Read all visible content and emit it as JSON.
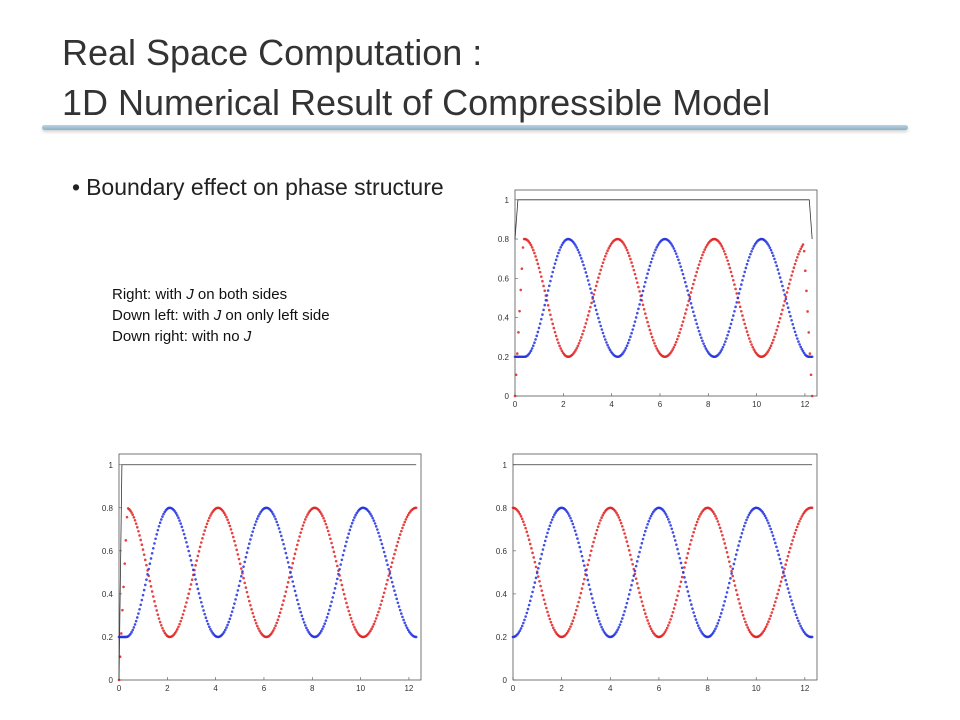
{
  "slide": {
    "title_line1": "Real Space Computation :",
    "title_line2": "1D Numerical Result of Compressible Model",
    "bullet_marker": "•",
    "bullet_text": "Boundary effect on phase structure",
    "caption_lines": [
      {
        "prefix": "Right: with ",
        "symbol": "J",
        "suffix": " on both sides"
      },
      {
        "prefix": "Down left: with ",
        "symbol": "J",
        "suffix": " on only left side"
      },
      {
        "prefix": "Down right: with no ",
        "symbol": "J",
        "suffix": ""
      }
    ]
  },
  "colors": {
    "red_series": "#e02020",
    "blue_series": "#2030e0",
    "black_series": "#333333"
  },
  "chart_data": [
    {
      "type": "scatter",
      "caption": "Right: with J on both sides",
      "xlim": [
        0,
        12.5
      ],
      "ylim": [
        0,
        1.05
      ],
      "x_ticks": [
        0,
        2,
        4,
        6,
        8,
        10,
        12
      ],
      "y_ticks": [
        0,
        0.2,
        0.4,
        0.6,
        0.8,
        1
      ],
      "period": 4.0,
      "amplitude": {
        "high": 0.8,
        "low": 0.2
      },
      "boundary": {
        "left": "J",
        "right": "J",
        "edge_values": {
          "red": 0.0,
          "blue": 0.2,
          "black_series_drop_to": 0.8
        }
      },
      "series": [
        {
          "color": "red",
          "start": 0.8,
          "peaks_x": [
            0.4,
            4.25,
            8.25,
            12.2
          ],
          "troughs_x": [
            2.2,
            6.2,
            10.2
          ]
        },
        {
          "color": "blue",
          "start": 0.2,
          "peaks_x": [
            2.2,
            6.2,
            10.2
          ],
          "troughs_x": [
            0.4,
            4.25,
            8.25,
            12.2
          ]
        },
        {
          "color": "black",
          "value": 1.0
        }
      ]
    },
    {
      "type": "scatter",
      "caption": "Down left: with J on only left side",
      "xlim": [
        0,
        12.5
      ],
      "ylim": [
        0,
        1.05
      ],
      "x_ticks": [
        0,
        2,
        4,
        6,
        8,
        10,
        12
      ],
      "y_ticks": [
        0,
        0.2,
        0.4,
        0.6,
        0.8,
        1
      ],
      "period": 4.0,
      "amplitude": {
        "high": 0.8,
        "low": 0.2
      },
      "boundary": {
        "left": "J",
        "right": "none",
        "edge_values": {
          "red": 0.0,
          "blue": 0.2
        }
      },
      "series": [
        {
          "color": "red",
          "start": 0.8,
          "peaks_x": [
            0.3,
            4.1,
            8.1,
            12.3
          ],
          "troughs_x": [
            2.1,
            6.1,
            10.1
          ]
        },
        {
          "color": "blue",
          "start": 0.2,
          "peaks_x": [
            2.1,
            6.1,
            10.1
          ],
          "troughs_x": [
            0.3,
            4.1,
            8.1,
            12.3
          ]
        },
        {
          "color": "black",
          "value": 1.0
        }
      ]
    },
    {
      "type": "scatter",
      "caption": "Down right: with no J",
      "xlim": [
        0,
        12.5
      ],
      "ylim": [
        0,
        1.05
      ],
      "x_ticks": [
        0,
        2,
        4,
        6,
        8,
        10,
        12
      ],
      "y_ticks": [
        0,
        0.2,
        0.4,
        0.6,
        0.8,
        1
      ],
      "period": 4.0,
      "amplitude": {
        "high": 0.8,
        "low": 0.2
      },
      "boundary": {
        "left": "none",
        "right": "none"
      },
      "series": [
        {
          "color": "red",
          "start": 0.8,
          "peaks_x": [
            0,
            4,
            8,
            12.25
          ],
          "troughs_x": [
            2,
            6,
            10
          ]
        },
        {
          "color": "blue",
          "start": 0.2,
          "peaks_x": [
            2,
            6,
            10
          ],
          "troughs_x": [
            0,
            4,
            8,
            12.25
          ]
        },
        {
          "color": "black",
          "value": 1.0
        }
      ]
    }
  ]
}
